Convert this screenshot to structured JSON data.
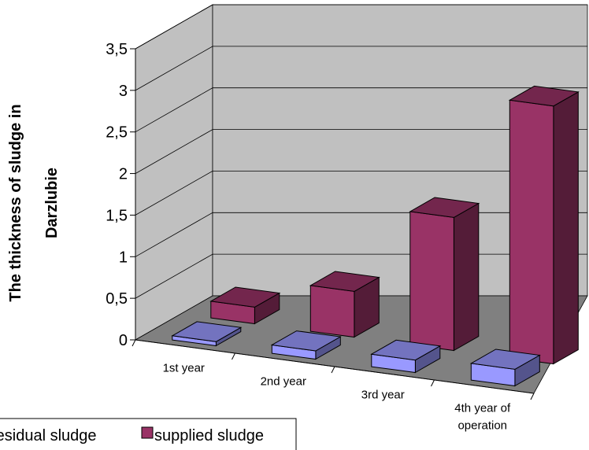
{
  "chart_data": {
    "type": "bar",
    "style": "3d-clustered-column",
    "ylabel_line1": "The thickness of sludge in",
    "ylabel_line2": "Darzlubie",
    "ylim": [
      0,
      3.5
    ],
    "yticks": [
      "0",
      "0,5",
      "1",
      "1,5",
      "2",
      "2,5",
      "3",
      "3,5"
    ],
    "grid": true,
    "categories": [
      [
        "1st year"
      ],
      [
        "2nd year"
      ],
      [
        "3rd year"
      ],
      [
        "4th year of",
        "operation"
      ]
    ],
    "series": [
      {
        "name": "residual sludge",
        "values": [
          0.05,
          0.1,
          0.15,
          0.2
        ],
        "color": "#9999ff"
      },
      {
        "name": "supplied sludge",
        "values": [
          0.2,
          0.55,
          1.6,
          3.1
        ],
        "color": "#993366"
      }
    ],
    "legend_position": "bottom-left",
    "wall_color": "#c0c0c0",
    "floor_color": "#808080"
  }
}
